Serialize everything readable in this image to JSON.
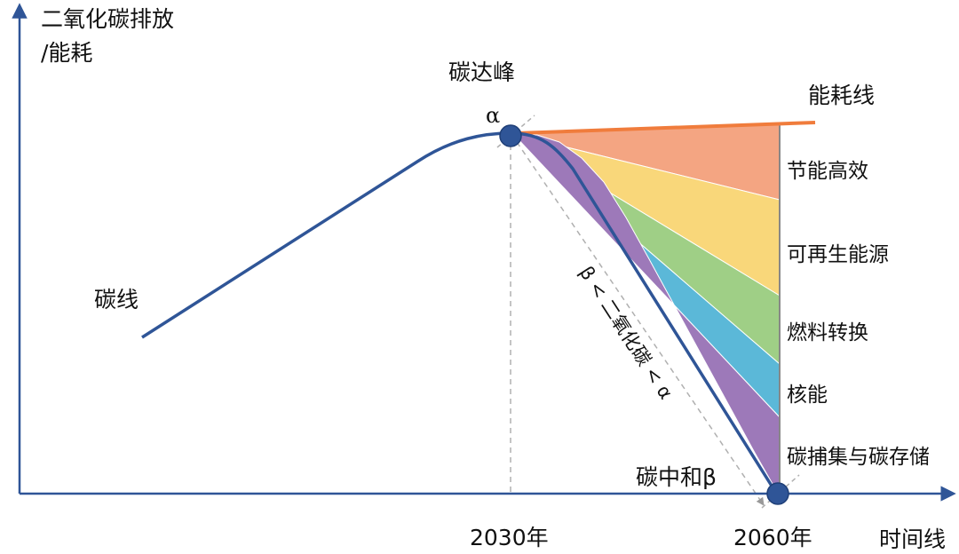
{
  "labels": {
    "y_axis_line1": "二氧化碳排放",
    "y_axis_line2": "/能耗",
    "x_axis": "时间线",
    "tick_2030": "2030年",
    "tick_2060": "2060年",
    "peak_label": "碳达峰",
    "alpha": "α",
    "neutral_label": "碳中和β",
    "carbon_line": "碳线",
    "energy_line": "能耗线",
    "slope_annotation": "β < 二氧化碳 < α"
  },
  "wedges": [
    {
      "label": "节能高效",
      "color": "#f4a582"
    },
    {
      "label": "可再生能源",
      "color": "#f9d77a"
    },
    {
      "label": "燃料转换",
      "color": "#9fcf86"
    },
    {
      "label": "核能",
      "color": "#5bb8d8"
    },
    {
      "label": "碳捕集与碳存储",
      "color": "#9d79b9"
    }
  ],
  "colors": {
    "axis": "#2f5597",
    "carbon_line": "#2f5597",
    "energy_line": "#f07c3c",
    "marker": "#2f5597"
  }
}
